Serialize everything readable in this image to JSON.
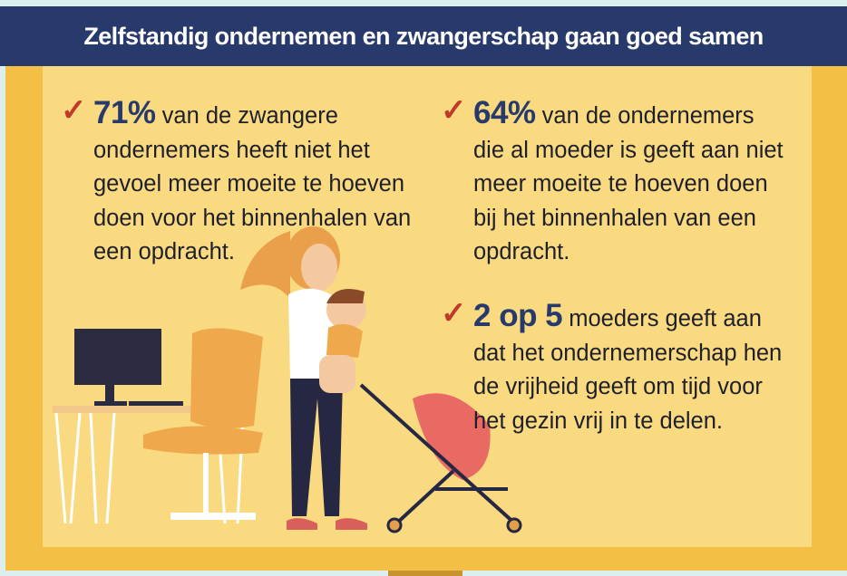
{
  "header": {
    "title": "Zelfstandig ondernemen en zwangerschap gaan goed samen"
  },
  "stats": [
    {
      "icon": "check-icon",
      "highlight": "71%",
      "text": "van de zwangere ondernemers heeft niet het gevoel meer moeite te hoeven doen voor het binnenhalen van een opdracht."
    },
    {
      "icon": "check-icon",
      "highlight": "64%",
      "text": "van de ondernemers die al moeder is geeft aan niet meer moeite te hoeven doen bij het binnenhalen van een opdracht."
    },
    {
      "icon": "check-icon",
      "highlight": "2 op 5",
      "text": "moeders geeft aan dat het ondernemerschap hen de vrijheid geeft om tijd voor het gezin vrij in te delen."
    }
  ],
  "colors": {
    "navy": "#283a6b",
    "frame": "#f3bf45",
    "panel": "#f9da80",
    "check": "#c0392b",
    "background": "#dceeee"
  }
}
